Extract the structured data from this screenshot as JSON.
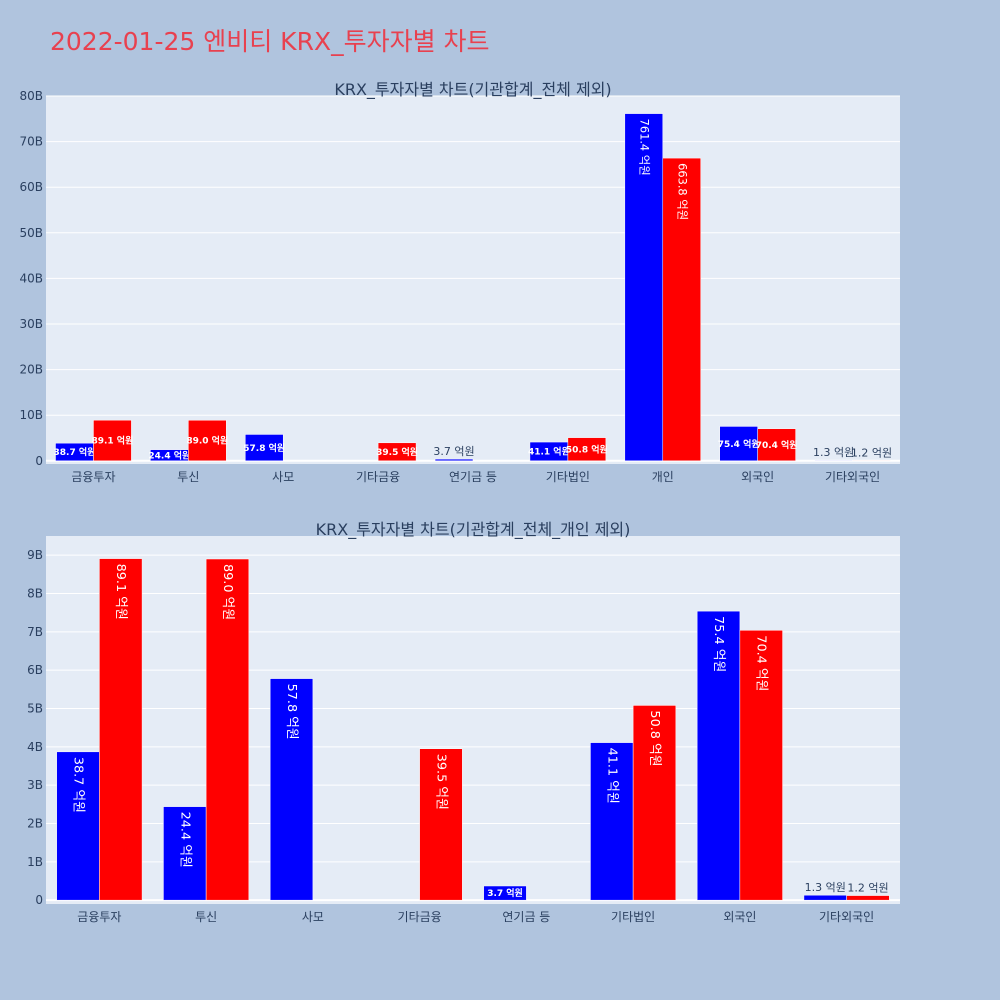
{
  "page": {
    "title": "2022-01-25 엔비티 KRX_투자자별 차트",
    "background": "#b0c4de",
    "title_color": "#e8414f"
  },
  "colors": {
    "buy": "#0000ff",
    "sell": "#ff0000",
    "plot_bg": "#e5ecf6"
  },
  "chart_data": [
    {
      "type": "bar",
      "title": "KRX_투자자별 차트(기관합계_전체 제외)",
      "categories": [
        "금융투자",
        "투신",
        "사모",
        "기타금융",
        "연기금 등",
        "기타법인",
        "개인",
        "외국인",
        "기타외국인"
      ],
      "series": [
        {
          "color": "#0000ff",
          "values": [
            3870000000,
            2440000000,
            5780000000,
            0,
            370000000,
            4110000000,
            76140000000,
            7540000000,
            130000000
          ],
          "labels": [
            "38.7 억원",
            "24.4 억원",
            "57.8 억원",
            "",
            "3.7 억원",
            "41.1 억원",
            "761.4 억원",
            "75.4 억원",
            "1.3 억원"
          ]
        },
        {
          "color": "#ff0000",
          "values": [
            8910000000,
            8900000000,
            0,
            3950000000,
            0,
            5080000000,
            66380000000,
            7040000000,
            120000000
          ],
          "labels": [
            "89.1 억원",
            "89.0 억원",
            "",
            "39.5 억원",
            "",
            "50.8 억원",
            "663.8 억원",
            "70.4 억원",
            "1.2 억원"
          ]
        }
      ],
      "ylim": [
        -700000000,
        80000000000
      ],
      "yticks": [
        0,
        10000000000,
        20000000000,
        30000000000,
        40000000000,
        50000000000,
        60000000000,
        70000000000,
        80000000000
      ],
      "ytick_labels": [
        "0",
        "10B",
        "20B",
        "30B",
        "40B",
        "50B",
        "60B",
        "70B",
        "80B"
      ],
      "grid": true
    },
    {
      "type": "bar",
      "title": "KRX_투자자별 차트(기관합계_전체_개인 제외)",
      "categories": [
        "금융투자",
        "투신",
        "사모",
        "기타금융",
        "연기금 등",
        "기타법인",
        "외국인",
        "기타외국인"
      ],
      "series": [
        {
          "color": "#0000ff",
          "values": [
            3870000000,
            2440000000,
            5780000000,
            0,
            370000000,
            4110000000,
            7540000000,
            130000000
          ],
          "labels": [
            "38.7 억원",
            "24.4 억원",
            "57.8 억원",
            "",
            "3.7 억원",
            "41.1 억원",
            "75.4 억원",
            "1.3 억원"
          ]
        },
        {
          "color": "#ff0000",
          "values": [
            8910000000,
            8900000000,
            0,
            3950000000,
            0,
            5080000000,
            7040000000,
            120000000
          ],
          "labels": [
            "89.1 억원",
            "89.0 억원",
            "",
            "39.5 억원",
            "",
            "50.8 억원",
            "70.4 억원",
            "1.2 억원"
          ]
        }
      ],
      "ylim": [
        -100000000,
        9500000000
      ],
      "yticks": [
        0,
        1000000000,
        2000000000,
        3000000000,
        4000000000,
        5000000000,
        6000000000,
        7000000000,
        8000000000,
        9000000000
      ],
      "ytick_labels": [
        "0",
        "1B",
        "2B",
        "3B",
        "4B",
        "5B",
        "6B",
        "7B",
        "8B",
        "9B"
      ],
      "grid": true
    }
  ]
}
